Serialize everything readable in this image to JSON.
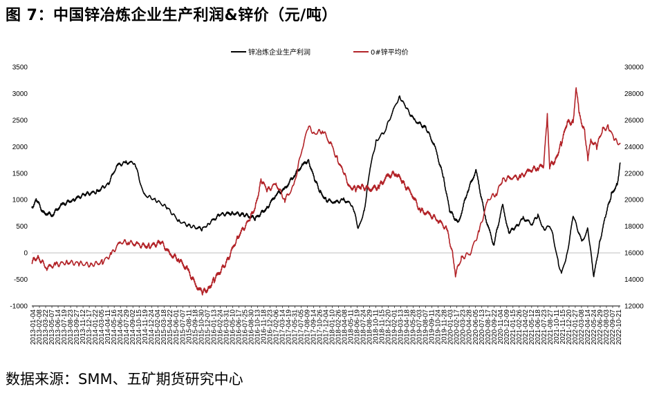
{
  "header": {
    "title": "图 7：中国锌冶炼企业生产利润&锌价（元/吨）"
  },
  "footer": {
    "source": "数据来源：SMM、五矿期货研究中心"
  },
  "colors": {
    "profit": "#000000",
    "price": "#b22227",
    "grid": "#bfbfbf"
  },
  "chart_data": {
    "type": "line",
    "title": "中国锌冶炼企业生产利润&锌价（元/吨）",
    "legend_position": "top-center",
    "y_left": {
      "min": -1000,
      "max": 3500,
      "ticks": [
        "-1000",
        "-500",
        "0",
        "500",
        "1000",
        "1500",
        "2000",
        "2500",
        "3000",
        "3500"
      ]
    },
    "y_right": {
      "min": 12000,
      "max": 30000,
      "ticks": [
        "12000",
        "14000",
        "16000",
        "18000",
        "20000",
        "22000",
        "24000",
        "26000",
        "28000",
        "30000"
      ]
    },
    "x_ticks": [
      "2013-01-04",
      "2013-02-08",
      "2013-03-22",
      "2013-05-07",
      "2013-06-14",
      "2013-07-19",
      "2013-08-23",
      "2013-09-27",
      "2013-11-12",
      "2013-12-17",
      "2014-01-22",
      "2014-03-05",
      "2014-04-11",
      "2014-05-16",
      "2014-06-24",
      "2014-07-29",
      "2014-09-02",
      "2014-10-15",
      "2014-11-19",
      "2014-12-24",
      "2015-02-04",
      "2015-03-18",
      "2015-04-22",
      "2015-06-01",
      "2015-07-07",
      "2015-08-11",
      "2015-09-18",
      "2015-10-30",
      "2015-12-07",
      "2016-01-13",
      "2016-02-24",
      "2016-03-31",
      "2016-05-10",
      "2016-06-17",
      "2016-07-25",
      "2016-08-30",
      "2016-10-13",
      "2016-11-18",
      "2016-12-23",
      "2017-02-06",
      "2017-03-14",
      "2017-04-19",
      "2017-05-31",
      "2017-07-05",
      "2017-08-09",
      "2017-09-14",
      "2017-10-26",
      "2017-12-04",
      "2018-01-10",
      "2018-02-26",
      "2018-04-08",
      "2018-05-11",
      "2018-06-19",
      "2018-07-24",
      "2018-08-29",
      "2018-10-11",
      "2018-11-15",
      "2018-12-20",
      "2019-02-01",
      "2019-03-13",
      "2019-04-18",
      "2019-05-28",
      "2019-07-03",
      "2019-08-07",
      "2019-09-11",
      "2019-10-24",
      "2019-11-28",
      "2020-01-03",
      "2020-02-17",
      "2020-03-23",
      "2020-04-28",
      "2020-06-05",
      "2020-07-13",
      "2020-08-17",
      "2020-09-22",
      "2020-11-04",
      "2020-12-09",
      "2021-01-15",
      "2021-02-26",
      "2021-04-02",
      "2021-05-12",
      "2021-06-18",
      "2021-07-23",
      "2021-08-27",
      "2021-10-11",
      "2021-11-15",
      "2021-12-20",
      "2022-01-27",
      "2022-03-08",
      "2022-04-14",
      "2022-05-24",
      "2022-06-29",
      "2022-08-03",
      "2022-09-07",
      "2022-10-21"
    ],
    "series": [
      {
        "name": "锌冶炼企业生产利润",
        "axis": "left",
        "color": "#000000",
        "x": [
          2013.0,
          2013.08,
          2013.2,
          2013.35,
          2013.5,
          2013.7,
          2013.9,
          2014.1,
          2014.3,
          2014.45,
          2014.6,
          2014.75,
          2014.9,
          2015.1,
          2015.3,
          2015.5,
          2015.7,
          2015.9,
          2016.0,
          2016.2,
          2016.4,
          2016.6,
          2016.8,
          2017.0,
          2017.15,
          2017.3,
          2017.45,
          2017.6,
          2017.7,
          2017.8,
          2017.9,
          2018.0,
          2018.15,
          2018.3,
          2018.45,
          2018.55,
          2018.65,
          2018.75,
          2018.85,
          2019.0,
          2019.15,
          2019.25,
          2019.35,
          2019.5,
          2019.7,
          2019.85,
          2020.0,
          2020.1,
          2020.25,
          2020.4,
          2020.55,
          2020.7,
          2020.85,
          2021.0,
          2021.1,
          2021.2,
          2021.35,
          2021.5,
          2021.6,
          2021.7,
          2021.8,
          2021.85,
          2021.95,
          2022.0,
          2022.1,
          2022.2,
          2022.35,
          2022.45,
          2022.55,
          2022.65,
          2022.75,
          2022.85,
          2022.95,
          2023.0
        ],
        "values": [
          850,
          1000,
          750,
          720,
          900,
          1000,
          1100,
          1150,
          1300,
          1650,
          1700,
          1700,
          1100,
          1000,
          850,
          600,
          500,
          450,
          550,
          720,
          750,
          720,
          650,
          850,
          1100,
          1200,
          1450,
          1650,
          1750,
          1400,
          1150,
          1000,
          950,
          1000,
          900,
          450,
          800,
          1600,
          2100,
          2300,
          2700,
          2950,
          2750,
          2500,
          2350,
          2000,
          1400,
          800,
          550,
          1150,
          1550,
          700,
          150,
          900,
          400,
          450,
          650,
          550,
          700,
          450,
          500,
          350,
          -200,
          -400,
          0,
          700,
          200,
          450,
          -450,
          200,
          700,
          1100,
          1300,
          1700
        ]
      },
      {
        "name": "0#锌平均价",
        "axis": "right",
        "color": "#b22227",
        "x": [
          2013.0,
          2013.1,
          2013.25,
          2013.4,
          2013.6,
          2013.8,
          2014.0,
          2014.2,
          2014.35,
          2014.5,
          2014.65,
          2014.8,
          2015.0,
          2015.2,
          2015.35,
          2015.5,
          2015.65,
          2015.8,
          2015.9,
          2016.0,
          2016.1,
          2016.3,
          2016.5,
          2016.7,
          2016.8,
          2016.9,
          2017.0,
          2017.15,
          2017.3,
          2017.45,
          2017.6,
          2017.7,
          2017.8,
          2017.95,
          2018.1,
          2018.2,
          2018.3,
          2018.4,
          2018.5,
          2018.6,
          2018.75,
          2018.9,
          2019.05,
          2019.2,
          2019.3,
          2019.45,
          2019.6,
          2019.75,
          2019.9,
          2020.05,
          2020.15,
          2020.2,
          2020.3,
          2020.45,
          2020.6,
          2020.75,
          2020.9,
          2021.0,
          2021.15,
          2021.3,
          2021.45,
          2021.6,
          2021.7,
          2021.76,
          2021.8,
          2021.9,
          2022.0,
          2022.1,
          2022.2,
          2022.25,
          2022.3,
          2022.4,
          2022.45,
          2022.5,
          2022.6,
          2022.7,
          2022.8,
          2022.9,
          2023.0
        ],
        "values": [
          15300,
          15700,
          14900,
          15100,
          15300,
          15200,
          15100,
          15300,
          15900,
          16800,
          16800,
          16600,
          16500,
          16800,
          15900,
          15500,
          14700,
          13500,
          13000,
          13300,
          14000,
          15200,
          17200,
          18500,
          19500,
          21500,
          20700,
          21200,
          20000,
          21000,
          24000,
          25500,
          25000,
          25200,
          24000,
          23000,
          22000,
          21000,
          20800,
          21000,
          20800,
          21000,
          21800,
          22000,
          21300,
          20500,
          19200,
          18900,
          18500,
          17800,
          16000,
          14400,
          15600,
          16000,
          17600,
          20000,
          20500,
          21500,
          21700,
          21700,
          22200,
          22400,
          22600,
          26500,
          22500,
          23000,
          24300,
          25800,
          25900,
          28500,
          26500,
          25000,
          23000,
          24500,
          24000,
          25300,
          25500,
          24500,
          24200
        ]
      }
    ]
  }
}
